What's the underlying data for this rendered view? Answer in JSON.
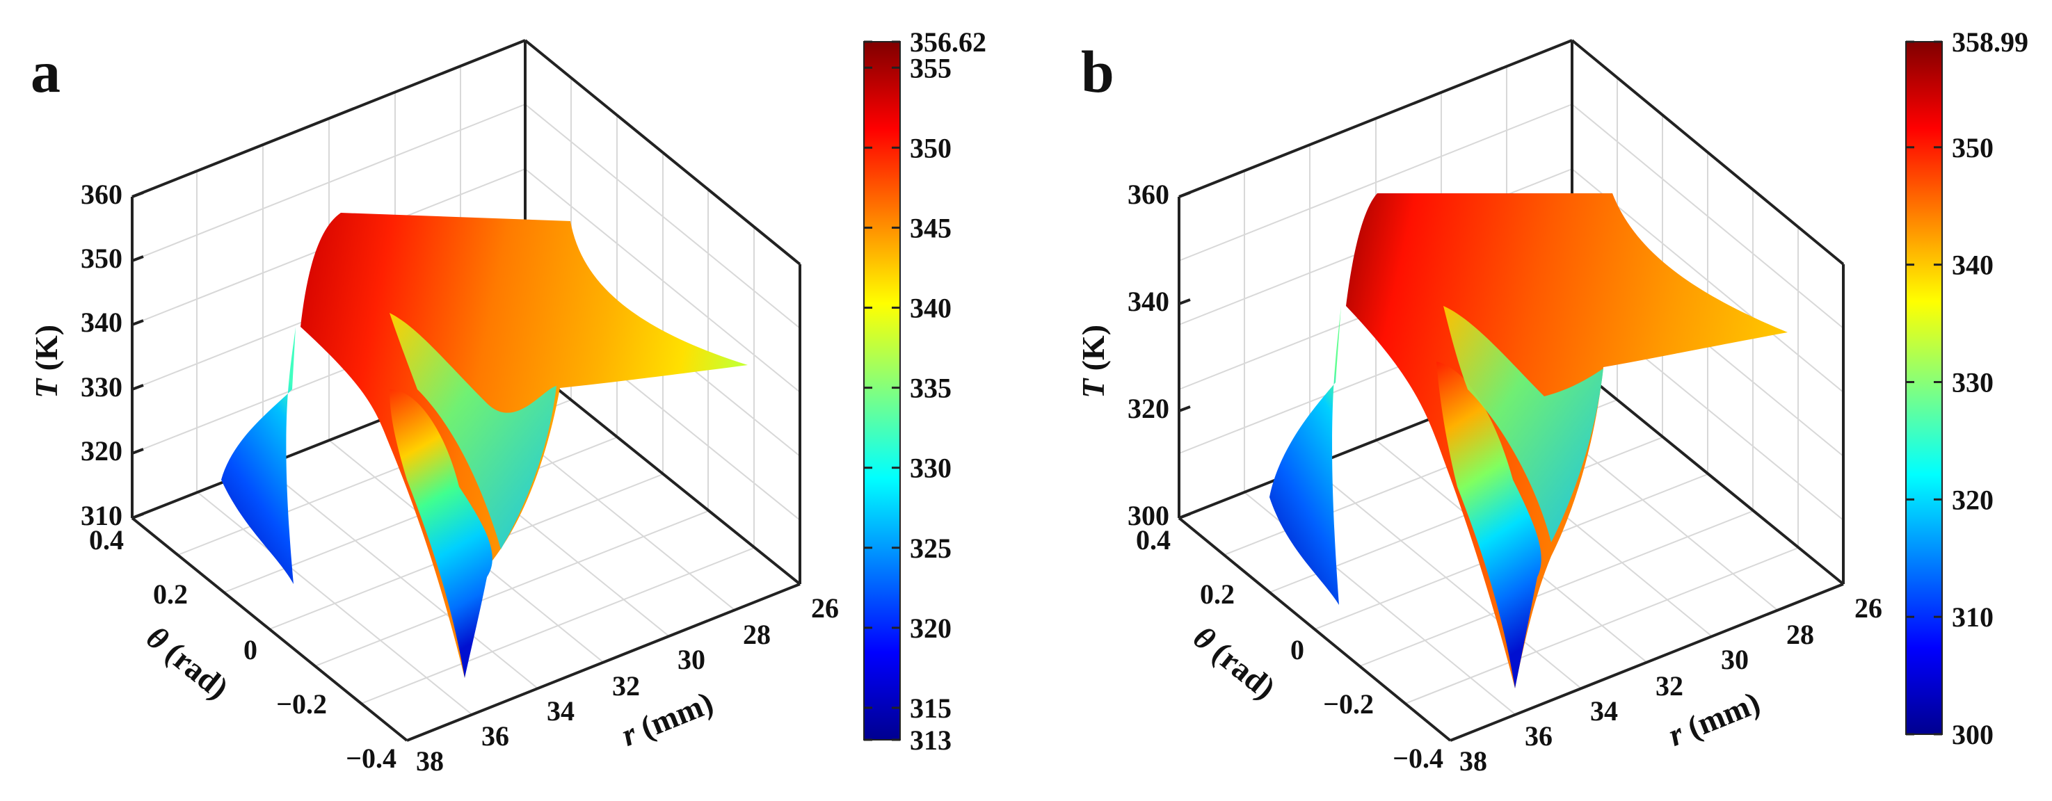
{
  "chart_data": [
    {
      "type": "surface",
      "panel_label": "a",
      "zlabel_italic": "T",
      "zlabel_unit": " (K)",
      "ylabel_symbol": "θ",
      "ylabel_unit": " (rad)",
      "xlabel_symbol": "r",
      "xlabel_unit": " (mm)",
      "zlim": [
        310,
        360
      ],
      "z_ticks": [
        "310",
        "320",
        "330",
        "340",
        "350",
        "360"
      ],
      "theta_lim": [
        -0.4,
        0.4
      ],
      "theta_ticks": [
        "0.4",
        "0.2",
        "0",
        "−0.2",
        "−0.4"
      ],
      "r_lim": [
        26,
        38
      ],
      "r_ticks": [
        "38",
        "36",
        "34",
        "32",
        "30",
        "28",
        "26"
      ],
      "colorbar": {
        "min": 313,
        "max": 356.62,
        "min_label": "313",
        "max_label": "356.62",
        "ticks": [
          "315",
          "320",
          "325",
          "330",
          "335",
          "340",
          "345",
          "350",
          "355"
        ]
      },
      "colormap": [
        "#00008f",
        "#0000ff",
        "#0080ff",
        "#00ffff",
        "#80ff80",
        "#ffff00",
        "#ff8000",
        "#ff0000",
        "#800000"
      ]
    },
    {
      "type": "surface",
      "panel_label": "b",
      "zlabel_italic": "T",
      "zlabel_unit": " (K)",
      "ylabel_symbol": "θ",
      "ylabel_unit": " (rad)",
      "xlabel_symbol": "r",
      "xlabel_unit": " (mm)",
      "zlim": [
        300,
        360
      ],
      "z_ticks": [
        "300",
        "320",
        "340",
        "360"
      ],
      "theta_lim": [
        -0.4,
        0.4
      ],
      "theta_ticks": [
        "0.4",
        "0.2",
        "0",
        "−0.2",
        "−0.4"
      ],
      "r_lim": [
        26,
        38
      ],
      "r_ticks": [
        "38",
        "36",
        "34",
        "32",
        "30",
        "28",
        "26"
      ],
      "colorbar": {
        "min": 300,
        "max": 358.99,
        "min_label": "300",
        "max_label": "358.99",
        "ticks": [
          "310",
          "320",
          "330",
          "340",
          "350"
        ]
      },
      "colormap": [
        "#00008f",
        "#0000ff",
        "#0080ff",
        "#00ffff",
        "#80ff80",
        "#ffff00",
        "#ff8000",
        "#ff0000",
        "#800000"
      ]
    }
  ]
}
